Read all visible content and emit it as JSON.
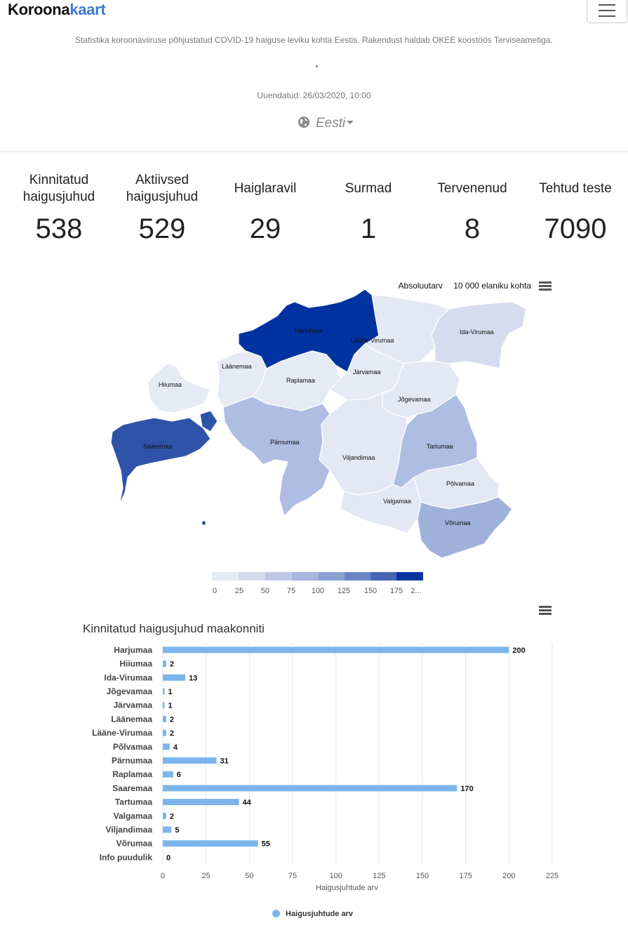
{
  "brand": {
    "part1": "Koroona",
    "part2": "kaart"
  },
  "header": {
    "subtitle": "Statistika koroonaviiruse põhjustatud COVID-19 haiguse leviku kohta Eestis. Rakendust haldab OKEE koostöös Terviseametiga.",
    "updated": "Uuendatud: 26/03/2020, 10:00",
    "language": "Eesti"
  },
  "stats": [
    {
      "label": "Kinnitatud haigusjuhud",
      "value": "538"
    },
    {
      "label": "Aktiivsed haigusjuhud",
      "value": "529"
    },
    {
      "label": "Haiglaravil",
      "value": "29"
    },
    {
      "label": "Surmad",
      "value": "1"
    },
    {
      "label": "Tervenenud",
      "value": "8"
    },
    {
      "label": "Tehtud teste",
      "value": "7090"
    }
  ],
  "map": {
    "tab_absolute": "Absoluutarv",
    "tab_per_capita": "10 000 elaniku kohta",
    "regions": {
      "harjumaa": "Harjumaa",
      "laane_virumaa": "Lääne-Virumaa",
      "ida_virumaa": "Ida-Virumaa",
      "laanemaa": "Läänemaa",
      "raplamaa": "Raplamaa",
      "jarvamaa": "Järvamaa",
      "hiiumaa": "Hiiumaa",
      "jogevamaa": "Jõgevamaa",
      "saaremaa": "Saaremaa",
      "parnumaa": "Pärnumaa",
      "tartumaa": "Tartumaa",
      "viljandimaa": "Viljandimaa",
      "polvamaa": "Põlvamaa",
      "valgamaa": "Valgamaa",
      "vorumaa": "Võrumaa"
    },
    "legend_ticks": [
      "0",
      "25",
      "50",
      "75",
      "100",
      "125",
      "150",
      "175",
      "2..."
    ],
    "colors": {
      "low": "#e6eaf5",
      "light": "#d6dcee",
      "mid": "#afbde2",
      "midhigh": "#9fb0da",
      "high": "#2f53a8",
      "highest": "#0033a0",
      "stroke": "#ffffff"
    }
  },
  "chart_data": {
    "type": "bar",
    "orientation": "horizontal",
    "title": "Kinnitatud haigusjuhud maakonniti",
    "categories": [
      "Harjumaa",
      "Hiiumaa",
      "Ida-Virumaa",
      "Jõgevamaa",
      "Järvamaa",
      "Läänemaa",
      "Lääne-Virumaa",
      "Põlvamaa",
      "Pärnumaa",
      "Raplamaa",
      "Saaremaa",
      "Tartumaa",
      "Valgamaa",
      "Viljandimaa",
      "Võrumaa",
      "Info puudulik"
    ],
    "series": [
      {
        "name": "Haigusjuhtude arv",
        "values": [
          200,
          2,
          13,
          1,
          1,
          2,
          2,
          4,
          31,
          6,
          170,
          44,
          2,
          5,
          55,
          0
        ]
      }
    ],
    "xlabel": "Haigusjuhtude arv",
    "ylabel": "",
    "xlim": [
      0,
      225
    ],
    "xticks": [
      0,
      25,
      50,
      75,
      100,
      125,
      150,
      175,
      200,
      225
    ],
    "grid": true,
    "legend": "bottom-center",
    "bar_color": "#7cb5ec"
  }
}
